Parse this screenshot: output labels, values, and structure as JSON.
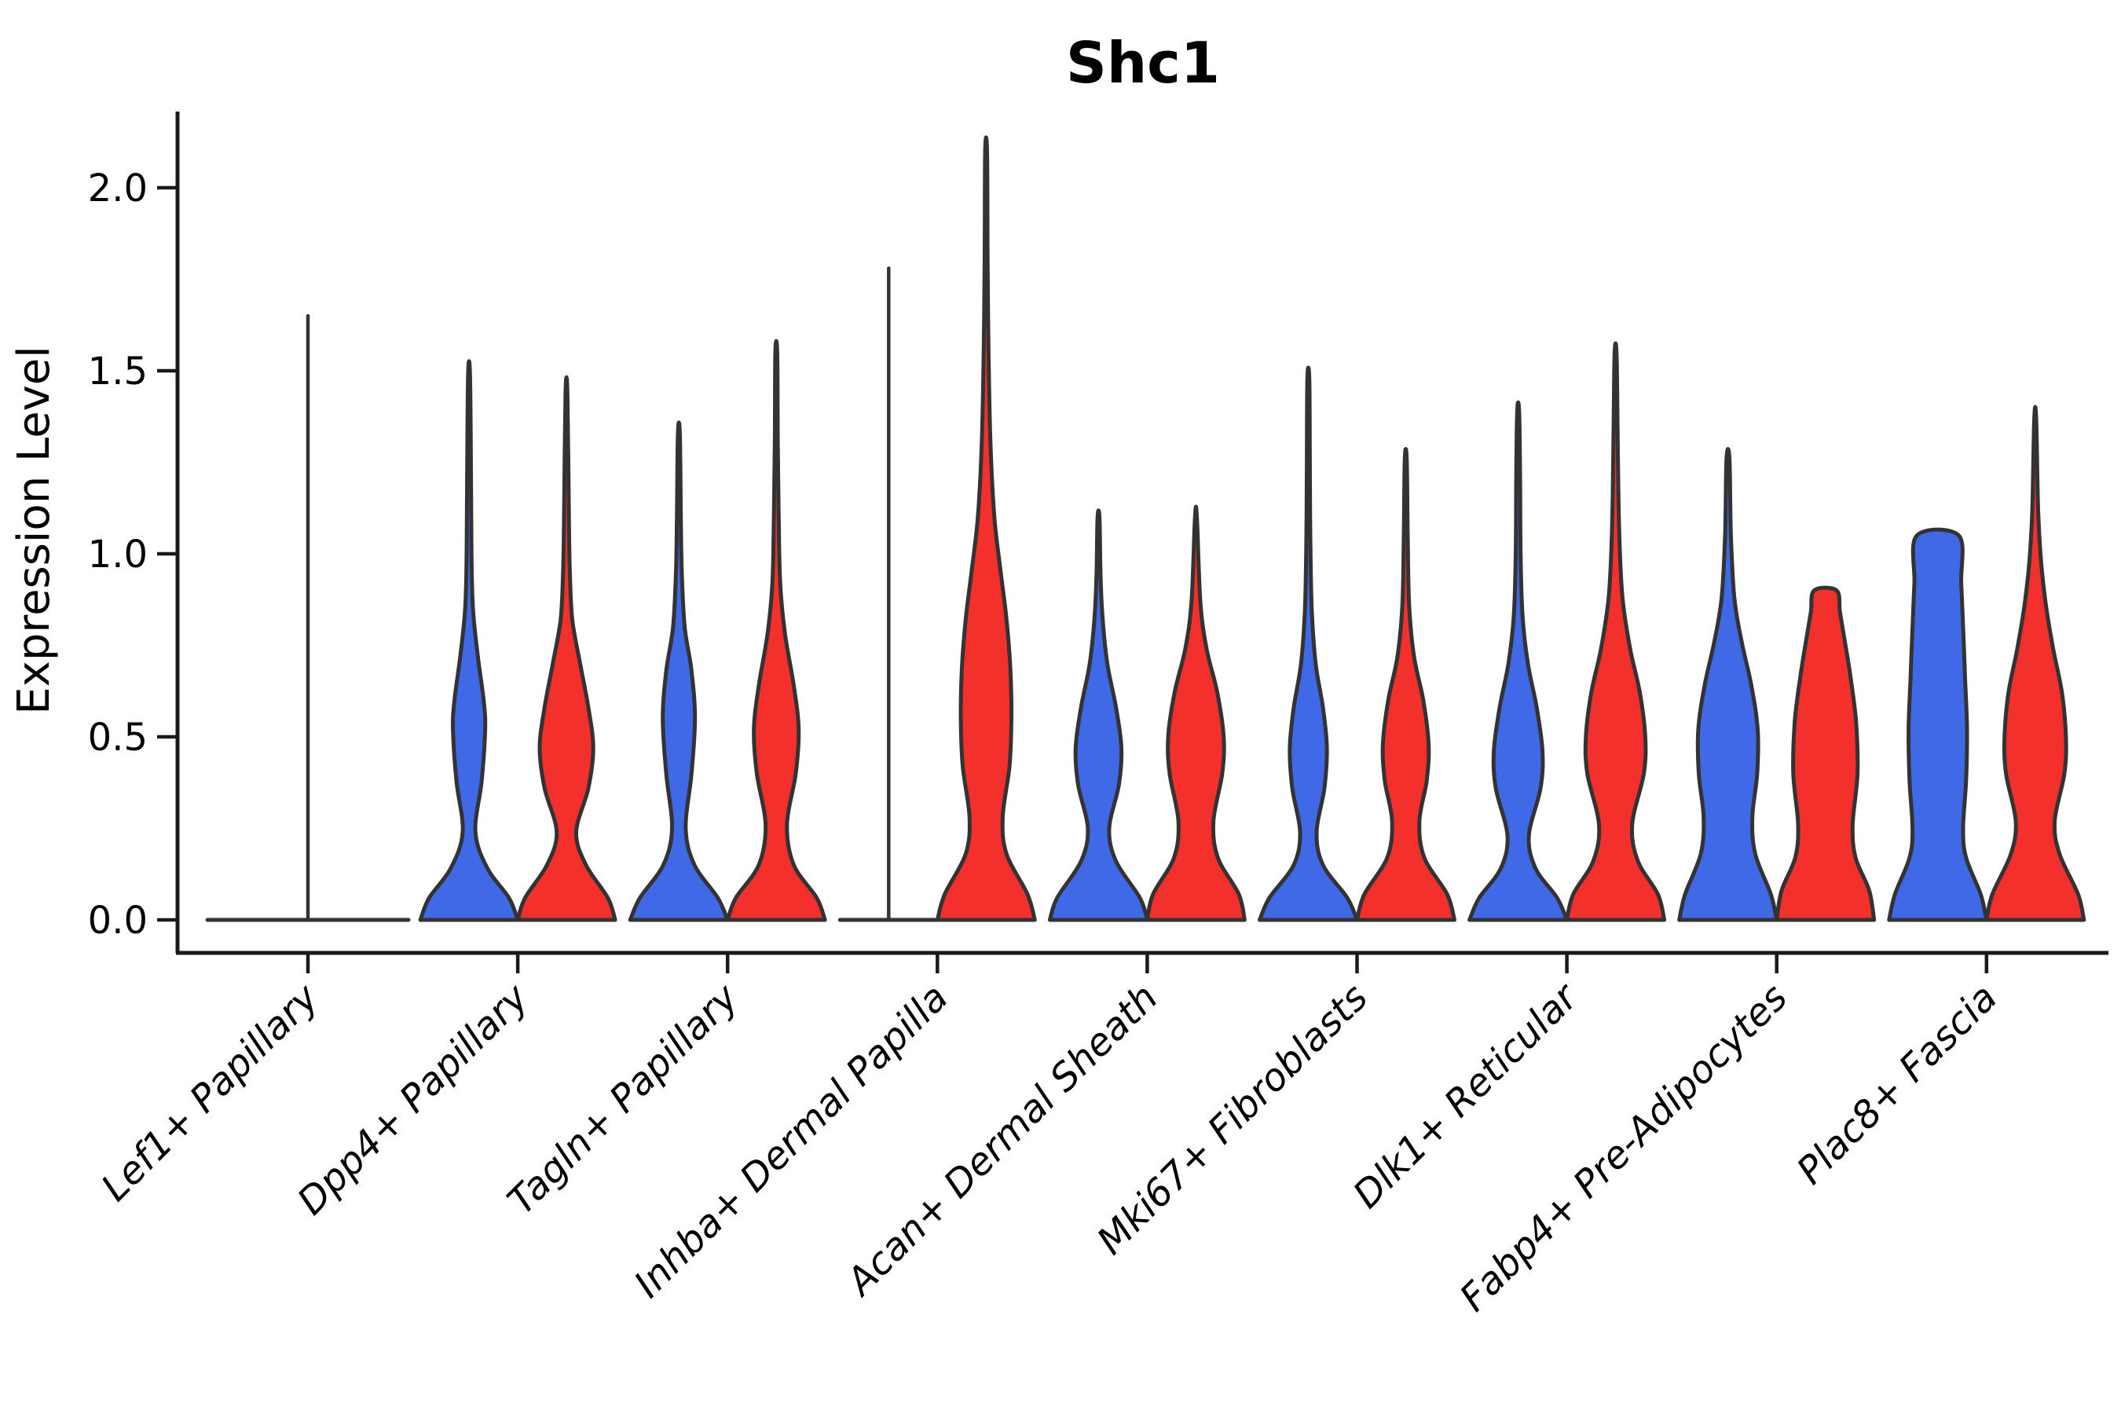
{
  "figure": {
    "title": "Shc1",
    "background": "#ffffff"
  },
  "y_axis": {
    "label": "Expression Level",
    "tick_labels": [
      "0.0",
      "0.5",
      "1.0",
      "1.5",
      "2.0"
    ],
    "tick_values": [
      0.0,
      0.5,
      1.0,
      1.5,
      2.0
    ]
  },
  "x_axis": {
    "categories": [
      "Lef1+ Papillary",
      "Dpp4+ Papillary",
      "Tagln+ Papillary",
      "Inhba+ Dermal Papilla",
      "Acan+ Dermal Sheath",
      "Mki67+ Fibroblasts",
      "Dlk1+ Reticular",
      "Fabp4+ Pre-Adipocytes",
      "Plac8+ Fascia"
    ]
  },
  "chart_data": {
    "type": "violin",
    "title": "Shc1",
    "xlabel": "",
    "ylabel": "Expression Level",
    "ylim": [
      -0.09,
      2.21
    ],
    "yticks": [
      0.0,
      0.5,
      1.0,
      1.5,
      2.0
    ],
    "grid": false,
    "legend": "none",
    "palette": {
      "blue": "#4069E8",
      "red": "#F4302C"
    },
    "outline_color": "#333333",
    "axis_color": "#1a1a1a",
    "categories": [
      "Lef1+ Papillary",
      "Dpp4+ Papillary",
      "Tagln+ Papillary",
      "Inhba+ Dermal Papilla",
      "Acan+ Dermal Sheath",
      "Mki67+ Fibroblasts",
      "Dlk1+ Reticular",
      "Fabp4+ Pre-Adipocytes",
      "Plac8+ Fascia"
    ],
    "violins": [
      {
        "label": "Lef1+ Papillary",
        "parts": [
          {
            "split": "center",
            "color": "none",
            "collapsed": true,
            "width": "full",
            "spike_top": 1.65,
            "note": "all expression ~0, single thin tail"
          }
        ]
      },
      {
        "label": "Dpp4+ Papillary",
        "parts": [
          {
            "split": "left",
            "color": "blue",
            "max": 1.49,
            "profile": [
              [
                0,
                1.0
              ],
              [
                0.06,
                0.82
              ],
              [
                0.14,
                0.38
              ],
              [
                0.24,
                0.13
              ],
              [
                0.38,
                0.26
              ],
              [
                0.52,
                0.33
              ],
              [
                0.6,
                0.3
              ],
              [
                0.72,
                0.18
              ],
              [
                0.85,
                0.08
              ],
              [
                1.0,
                0.05
              ],
              [
                1.2,
                0.04
              ],
              [
                1.49,
                0.02
              ]
            ]
          },
          {
            "split": "right",
            "color": "red",
            "max": 1.44,
            "profile": [
              [
                0,
                1.0
              ],
              [
                0.06,
                0.85
              ],
              [
                0.15,
                0.4
              ],
              [
                0.24,
                0.2
              ],
              [
                0.36,
                0.45
              ],
              [
                0.47,
                0.55
              ],
              [
                0.58,
                0.45
              ],
              [
                0.7,
                0.28
              ],
              [
                0.82,
                0.12
              ],
              [
                0.95,
                0.07
              ],
              [
                1.1,
                0.05
              ],
              [
                1.44,
                0.02
              ]
            ]
          }
        ]
      },
      {
        "label": "Tagln+ Papillary",
        "parts": [
          {
            "split": "left",
            "color": "blue",
            "max": 1.33,
            "profile": [
              [
                0,
                1.0
              ],
              [
                0.06,
                0.8
              ],
              [
                0.15,
                0.32
              ],
              [
                0.25,
                0.14
              ],
              [
                0.4,
                0.26
              ],
              [
                0.55,
                0.33
              ],
              [
                0.68,
                0.26
              ],
              [
                0.8,
                0.12
              ],
              [
                0.95,
                0.06
              ],
              [
                1.1,
                0.04
              ],
              [
                1.33,
                0.02
              ]
            ]
          },
          {
            "split": "right",
            "color": "red",
            "max": 1.55,
            "profile": [
              [
                0,
                1.0
              ],
              [
                0.06,
                0.83
              ],
              [
                0.15,
                0.36
              ],
              [
                0.26,
                0.22
              ],
              [
                0.4,
                0.4
              ],
              [
                0.52,
                0.46
              ],
              [
                0.64,
                0.36
              ],
              [
                0.78,
                0.18
              ],
              [
                0.92,
                0.08
              ],
              [
                1.1,
                0.05
              ],
              [
                1.3,
                0.03
              ],
              [
                1.55,
                0.02
              ]
            ]
          }
        ]
      },
      {
        "label": "Inhba+ Dermal Papilla",
        "parts": [
          {
            "split": "left",
            "color": "blue",
            "collapsed": true,
            "width": "half",
            "spike_top": 1.78,
            "note": "expression ~0 with thin tail"
          },
          {
            "split": "right",
            "color": "red",
            "max": 2.1,
            "profile": [
              [
                0,
                1.0
              ],
              [
                0.07,
                0.85
              ],
              [
                0.18,
                0.42
              ],
              [
                0.28,
                0.34
              ],
              [
                0.42,
                0.48
              ],
              [
                0.55,
                0.52
              ],
              [
                0.68,
                0.5
              ],
              [
                0.82,
                0.42
              ],
              [
                0.95,
                0.3
              ],
              [
                1.1,
                0.17
              ],
              [
                1.3,
                0.09
              ],
              [
                1.55,
                0.05
              ],
              [
                1.8,
                0.03
              ],
              [
                2.1,
                0.02
              ]
            ]
          }
        ]
      },
      {
        "label": "Acan+ Dermal Sheath",
        "parts": [
          {
            "split": "left",
            "color": "blue",
            "max": 1.1,
            "profile": [
              [
                0,
                1.0
              ],
              [
                0.06,
                0.85
              ],
              [
                0.16,
                0.36
              ],
              [
                0.25,
                0.22
              ],
              [
                0.37,
                0.42
              ],
              [
                0.47,
                0.47
              ],
              [
                0.58,
                0.36
              ],
              [
                0.7,
                0.18
              ],
              [
                0.83,
                0.08
              ],
              [
                0.95,
                0.04
              ],
              [
                1.1,
                0.02
              ]
            ]
          },
          {
            "split": "right",
            "color": "red",
            "max": 1.1,
            "profile": [
              [
                0,
                1.0
              ],
              [
                0.07,
                0.88
              ],
              [
                0.17,
                0.45
              ],
              [
                0.27,
                0.36
              ],
              [
                0.4,
                0.54
              ],
              [
                0.5,
                0.57
              ],
              [
                0.62,
                0.44
              ],
              [
                0.74,
                0.22
              ],
              [
                0.87,
                0.09
              ],
              [
                1.1,
                0.02
              ]
            ]
          }
        ]
      },
      {
        "label": "Mki67+ Fibroblasts",
        "parts": [
          {
            "split": "left",
            "color": "blue",
            "max": 1.48,
            "profile": [
              [
                0,
                1.0
              ],
              [
                0.06,
                0.8
              ],
              [
                0.15,
                0.3
              ],
              [
                0.24,
                0.17
              ],
              [
                0.36,
                0.33
              ],
              [
                0.47,
                0.38
              ],
              [
                0.58,
                0.3
              ],
              [
                0.7,
                0.15
              ],
              [
                0.85,
                0.07
              ],
              [
                1.05,
                0.04
              ],
              [
                1.25,
                0.03
              ],
              [
                1.48,
                0.02
              ]
            ]
          },
          {
            "split": "right",
            "color": "red",
            "max": 1.26,
            "profile": [
              [
                0,
                1.0
              ],
              [
                0.07,
                0.85
              ],
              [
                0.17,
                0.38
              ],
              [
                0.27,
                0.28
              ],
              [
                0.38,
                0.43
              ],
              [
                0.48,
                0.47
              ],
              [
                0.6,
                0.36
              ],
              [
                0.72,
                0.17
              ],
              [
                0.86,
                0.07
              ],
              [
                1.05,
                0.04
              ],
              [
                1.26,
                0.02
              ]
            ]
          }
        ]
      },
      {
        "label": "Dlk1+ Reticular",
        "parts": [
          {
            "split": "left",
            "color": "blue",
            "max": 1.39,
            "profile": [
              [
                0,
                1.0
              ],
              [
                0.06,
                0.8
              ],
              [
                0.14,
                0.36
              ],
              [
                0.23,
                0.22
              ],
              [
                0.36,
                0.46
              ],
              [
                0.46,
                0.5
              ],
              [
                0.58,
                0.38
              ],
              [
                0.7,
                0.2
              ],
              [
                0.83,
                0.09
              ],
              [
                1.0,
                0.05
              ],
              [
                1.2,
                0.04
              ],
              [
                1.39,
                0.02
              ]
            ]
          },
          {
            "split": "right",
            "color": "red",
            "max": 1.55,
            "profile": [
              [
                0,
                1.0
              ],
              [
                0.07,
                0.87
              ],
              [
                0.16,
                0.46
              ],
              [
                0.26,
                0.34
              ],
              [
                0.4,
                0.58
              ],
              [
                0.5,
                0.61
              ],
              [
                0.62,
                0.5
              ],
              [
                0.74,
                0.3
              ],
              [
                0.87,
                0.15
              ],
              [
                1.0,
                0.09
              ],
              [
                1.15,
                0.06
              ],
              [
                1.35,
                0.04
              ],
              [
                1.55,
                0.02
              ]
            ]
          }
        ]
      },
      {
        "label": "Fabp4+ Pre-Adipocytes",
        "parts": [
          {
            "split": "left",
            "color": "blue",
            "max": 1.26,
            "profile": [
              [
                0,
                1.0
              ],
              [
                0.07,
                0.88
              ],
              [
                0.18,
                0.56
              ],
              [
                0.28,
                0.5
              ],
              [
                0.4,
                0.6
              ],
              [
                0.52,
                0.61
              ],
              [
                0.64,
                0.48
              ],
              [
                0.76,
                0.28
              ],
              [
                0.88,
                0.13
              ],
              [
                1.05,
                0.06
              ],
              [
                1.26,
                0.03
              ]
            ]
          },
          {
            "split": "right",
            "color": "red",
            "max": 0.9,
            "top": "flat",
            "profile": [
              [
                0,
                1.0
              ],
              [
                0.08,
                0.9
              ],
              [
                0.17,
                0.62
              ],
              [
                0.26,
                0.56
              ],
              [
                0.4,
                0.66
              ],
              [
                0.54,
                0.63
              ],
              [
                0.66,
                0.52
              ],
              [
                0.76,
                0.4
              ],
              [
                0.84,
                0.3
              ],
              [
                0.9,
                0.23
              ]
            ]
          }
        ]
      },
      {
        "label": "Plac8+ Fascia",
        "parts": [
          {
            "split": "left",
            "color": "blue",
            "max": 1.05,
            "top": "flat",
            "profile": [
              [
                0,
                1.0
              ],
              [
                0.07,
                0.88
              ],
              [
                0.17,
                0.58
              ],
              [
                0.25,
                0.52
              ],
              [
                0.38,
                0.58
              ],
              [
                0.52,
                0.6
              ],
              [
                0.66,
                0.56
              ],
              [
                0.8,
                0.52
              ],
              [
                0.92,
                0.48
              ],
              [
                1.05,
                0.43
              ]
            ]
          },
          {
            "split": "right",
            "color": "red",
            "max": 1.37,
            "profile": [
              [
                0,
                1.0
              ],
              [
                0.07,
                0.88
              ],
              [
                0.18,
                0.5
              ],
              [
                0.27,
                0.4
              ],
              [
                0.4,
                0.6
              ],
              [
                0.5,
                0.63
              ],
              [
                0.62,
                0.55
              ],
              [
                0.74,
                0.37
              ],
              [
                0.86,
                0.22
              ],
              [
                0.98,
                0.12
              ],
              [
                1.12,
                0.06
              ],
              [
                1.37,
                0.02
              ]
            ]
          }
        ]
      }
    ]
  }
}
